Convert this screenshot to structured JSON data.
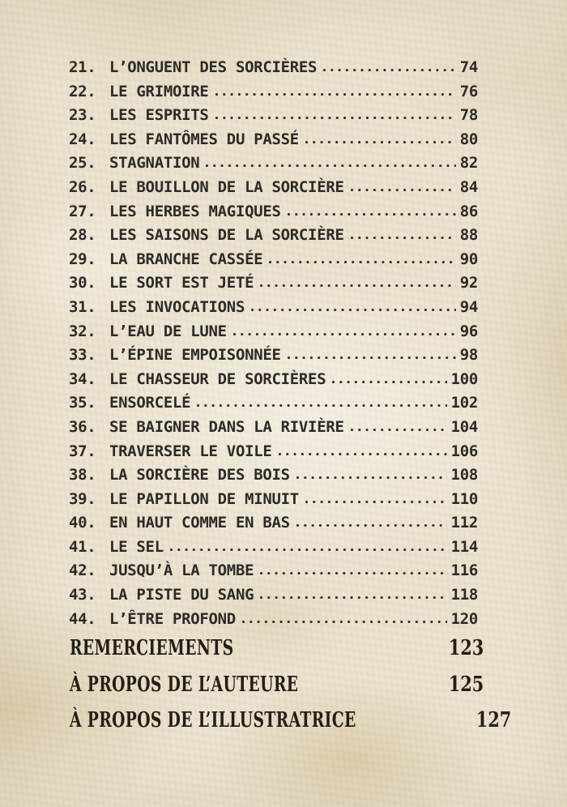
{
  "document": {
    "colors": {
      "paper": "#eae2cf",
      "ink": "#2d2b27",
      "serif_ink": "#241f16"
    },
    "toc": {
      "entries": [
        {
          "number": "21.",
          "title": "L’ONGUENT DES SORCIÈRES",
          "page": "74"
        },
        {
          "number": "22.",
          "title": "LE GRIMOIRE",
          "page": "76"
        },
        {
          "number": "23.",
          "title": "LES ESPRITS",
          "page": "78"
        },
        {
          "number": "24.",
          "title": "LES FANTÔMES DU PASSÉ",
          "page": "80"
        },
        {
          "number": "25.",
          "title": "STAGNATION",
          "page": "82"
        },
        {
          "number": "26.",
          "title": "LE BOUILLON DE LA SORCIÈRE",
          "page": "84"
        },
        {
          "number": "27.",
          "title": "LES HERBES MAGIQUES",
          "page": "86"
        },
        {
          "number": "28.",
          "title": "LES SAISONS DE LA SORCIÈRE",
          "page": "88"
        },
        {
          "number": "29.",
          "title": "LA BRANCHE CASSÉE",
          "page": "90"
        },
        {
          "number": "30.",
          "title": "LE SORT EST JETÉ",
          "page": "92"
        },
        {
          "number": "31.",
          "title": "LES INVOCATIONS",
          "page": "94"
        },
        {
          "number": "32.",
          "title": "L’EAU DE LUNE",
          "page": "96"
        },
        {
          "number": "33.",
          "title": "L’ÉPINE EMPOISONNÉE",
          "page": "98"
        },
        {
          "number": "34.",
          "title": "LE CHASSEUR DE SORCIÈRES",
          "page": "100"
        },
        {
          "number": "35.",
          "title": "ENSORCELÉ",
          "page": "102"
        },
        {
          "number": "36.",
          "title": "SE BAIGNER DANS LA RIVIÈRE",
          "page": "104"
        },
        {
          "number": "37.",
          "title": "TRAVERSER LE VOILE",
          "page": "106"
        },
        {
          "number": "38.",
          "title": "LA SORCIÈRE DES BOIS",
          "page": "108"
        },
        {
          "number": "39.",
          "title": "LE PAPILLON DE MINUIT",
          "page": "110"
        },
        {
          "number": "40.",
          "title": "EN HAUT COMME EN BAS",
          "page": "112"
        },
        {
          "number": "41.",
          "title": "LE SEL",
          "page": "114"
        },
        {
          "number": "42.",
          "title": "JUSQU’À LA TOMBE",
          "page": "116"
        },
        {
          "number": "43.",
          "title": "LA PISTE DU SANG",
          "page": "118"
        },
        {
          "number": "44.",
          "title": "L’ÊTRE PROFOND",
          "page": "120"
        }
      ]
    },
    "back_matter": {
      "items": [
        {
          "title": "REMERCIEMENTS",
          "page": "123"
        },
        {
          "title": "À PROPOS DE L’AUTEURE",
          "page": "125"
        },
        {
          "title": "À PROPOS DE L’ILLUSTRATRICE",
          "page": "127"
        }
      ]
    }
  }
}
